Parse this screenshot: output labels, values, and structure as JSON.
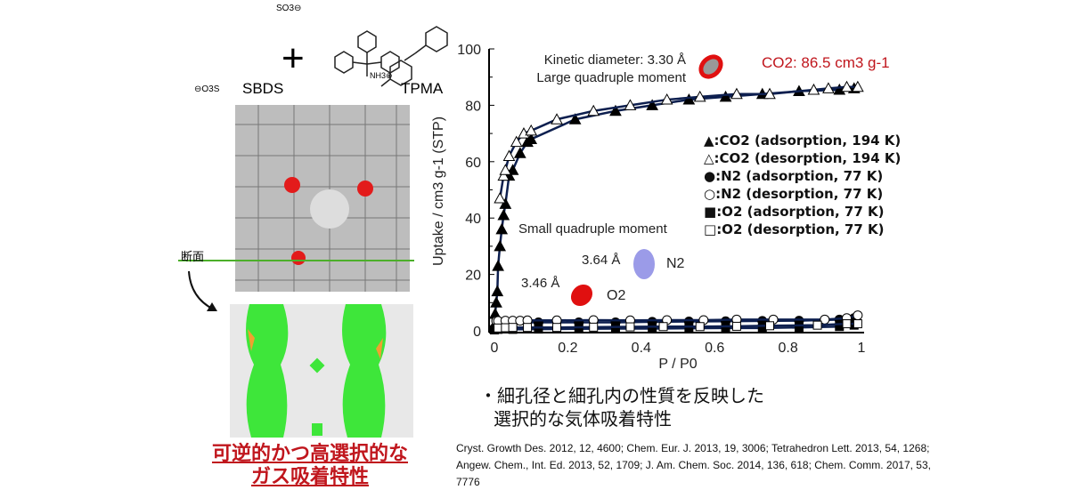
{
  "left_panel": {
    "sbds_label": "SBDS",
    "tpma_label": "TPMA",
    "plus": "+",
    "so3_top": "SO3⊖",
    "so3_left": "⊖O3S",
    "nh3": "NH3⊕",
    "cross_section_label": "断面",
    "title_line1": "可逆的かつ高選択的な",
    "title_line2": "ガス吸着特性",
    "colors": {
      "channel": "#3ee63a",
      "framework": "#999999",
      "red": "#c0161d"
    }
  },
  "annotations": {
    "kinetic": "Kinetic diameter: 3.30 Å",
    "large_quad": "Large quadruple moment",
    "co2_capacity": "CO2: 86.5 cm3 g-1",
    "small_quad": "Small quadruple moment",
    "n2_size": "3.64 Å",
    "n2_label": "N2",
    "o2_size": "3.46 Å",
    "o2_label": "O2"
  },
  "legend": [
    {
      "symbol": "▲",
      "text": ":CO2 (adsorption, 194 K)"
    },
    {
      "symbol": "△",
      "text": ":CO2 (desorption, 194 K)"
    },
    {
      "symbol": "●",
      "text": ":N2 (adsorption, 77 K)"
    },
    {
      "symbol": "○",
      "text": ":N2 (desorption, 77 K)"
    },
    {
      "symbol": "■",
      "text": ":O2 (adsorption, 77 K)"
    },
    {
      "symbol": "□",
      "text": ":O2 (desorption, 77 K)"
    }
  ],
  "bullet": {
    "line1": "・細孔径と細孔内の性質を反映した",
    "line2": "選択的な気体吸着特性"
  },
  "citation": "Cryst. Growth Des. 2012, 12, 4600; Chem. Eur. J. 2013, 19, 3006; Tetrahedron Lett. 2013, 54, 1268; Angew. Chem., Int. Ed. 2013, 52, 1709; J. Am. Chem. Soc. 2014, 136, 618; Chem. Comm. 2017, 53, 7776",
  "chart_data": {
    "type": "scatter",
    "xlabel": "P / P0",
    "ylabel": "Uptake / cm3 g-1 (STP)",
    "xlim": [
      0,
      1
    ],
    "ylim": [
      0,
      100
    ],
    "xticks": [
      "0",
      "0.2",
      "0.4",
      "0.6",
      "0.8",
      "1"
    ],
    "yticks": [
      "0",
      "20",
      "40",
      "60",
      "80",
      "100"
    ],
    "line_color": "#0d1f4f",
    "series": [
      {
        "name": "CO2 adsorption, 194 K",
        "marker": "triangle-filled",
        "x": [
          0,
          0.002,
          0.005,
          0.008,
          0.01,
          0.015,
          0.02,
          0.025,
          0.03,
          0.04,
          0.05,
          0.07,
          0.09,
          0.1,
          0.22,
          0.33,
          0.43,
          0.53,
          0.63,
          0.73,
          0.83,
          0.94,
          0.98
        ],
        "y": [
          2,
          6,
          10,
          14,
          23,
          30,
          36,
          41,
          45,
          55,
          57,
          63,
          67,
          68,
          75,
          78,
          80,
          82,
          83,
          84,
          85,
          85.5,
          86
        ]
      },
      {
        "name": "CO2 desorption, 194 K",
        "marker": "triangle-open",
        "x": [
          0.99,
          0.96,
          0.91,
          0.87,
          0.75,
          0.66,
          0.56,
          0.47,
          0.37,
          0.27,
          0.17,
          0.1,
          0.08,
          0.06,
          0.04,
          0.03,
          0.025,
          0.015
        ],
        "y": [
          86.5,
          86.5,
          86,
          85.5,
          84,
          84,
          83,
          82,
          80,
          78,
          75,
          71,
          70,
          67,
          62,
          57,
          55,
          47
        ]
      },
      {
        "name": "N2 adsorption, 77 K",
        "marker": "circle-filled",
        "x": [
          0,
          0.01,
          0.03,
          0.12,
          0.23,
          0.33,
          0.43,
          0.53,
          0.63,
          0.73,
          0.83,
          0.94,
          0.98
        ],
        "y": [
          1,
          2.5,
          3,
          3,
          3,
          3,
          3.2,
          3.3,
          3.4,
          3.5,
          3.6,
          4,
          4.5
        ]
      },
      {
        "name": "N2 desorption, 77 K",
        "marker": "circle-open",
        "x": [
          0.99,
          0.96,
          0.9,
          0.76,
          0.66,
          0.57,
          0.47,
          0.37,
          0.27,
          0.17,
          0.09,
          0.07,
          0.05,
          0.03,
          0.01,
          0.005
        ],
        "y": [
          5.5,
          4.5,
          4,
          4,
          4,
          3.8,
          3.8,
          3.7,
          3.8,
          3.7,
          3.7,
          3.6,
          3.6,
          3.6,
          3.5,
          3.5
        ]
      },
      {
        "name": "O2 adsorption, 77 K",
        "marker": "square-filled",
        "x": [
          0,
          0.01,
          0.05,
          0.12,
          0.23,
          0.33,
          0.43,
          0.53,
          0.63,
          0.73,
          0.83,
          0.94,
          0.98
        ],
        "y": [
          0.3,
          0.5,
          0.5,
          0.6,
          0.7,
          0.8,
          0.8,
          0.9,
          1,
          1,
          1.2,
          1.5,
          2
        ]
      },
      {
        "name": "O2 desorption, 77 K",
        "marker": "square-open",
        "x": [
          0.99,
          0.96,
          0.88,
          0.75,
          0.66,
          0.56,
          0.46,
          0.37,
          0.27,
          0.17,
          0.09,
          0.05,
          0.03,
          0.01
        ],
        "y": [
          2.5,
          2.5,
          2,
          1.8,
          1.6,
          1.5,
          1.5,
          1.4,
          1.3,
          1.2,
          1.2,
          1.2,
          1.1,
          1
        ]
      }
    ]
  }
}
